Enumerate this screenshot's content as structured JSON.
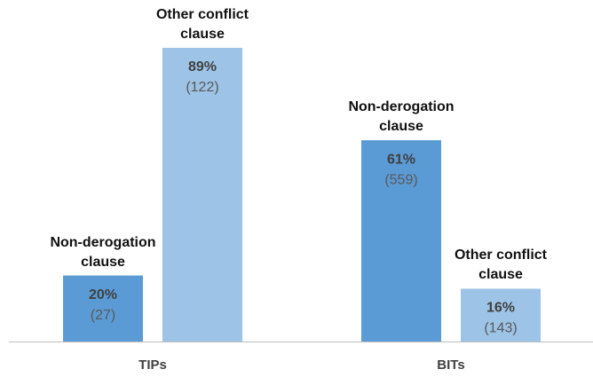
{
  "chart_data": {
    "type": "bar",
    "categories": [
      "TIPs",
      "BITs"
    ],
    "series": [
      {
        "name": "Non-derogation clause",
        "color": "#5b9bd5",
        "values": [
          20,
          61
        ],
        "value_labels": [
          "20%",
          "61%"
        ],
        "counts": [
          27,
          559
        ],
        "count_labels": [
          "(27)",
          "(559)"
        ]
      },
      {
        "name": "Other conflict clause",
        "color": "#9dc3e6",
        "values": [
          89,
          16
        ],
        "value_labels": [
          "89%",
          "16%"
        ],
        "counts": [
          122,
          143
        ],
        "count_labels": [
          "(122)",
          "(143)"
        ]
      }
    ]
  }
}
